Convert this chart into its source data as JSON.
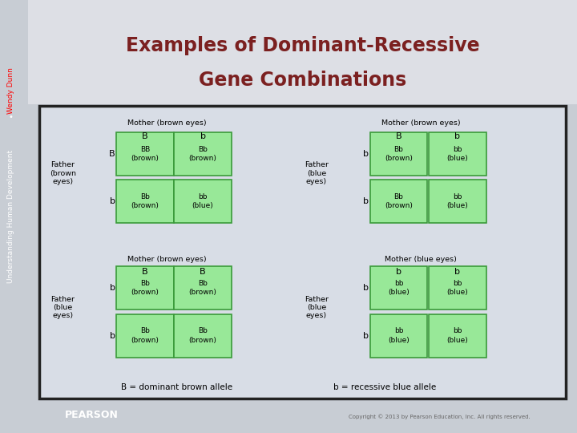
{
  "title_line1": "Examples of Dominant-Recessive",
  "title_line2": "Gene Combinations",
  "title_color": "#7B2020",
  "bg_color": "#C8CDD4",
  "inner_box_color": "#D8DDE6",
  "cell_fill_color": "#98E898",
  "cell_border_color": "#3A9A3A",
  "sidebar_bg": "#111111",
  "sidebar_text_main": "Understanding Human Development",
  "sidebar_text_bullet": "•",
  "sidebar_text_name": "Wendy Dunn",
  "pearson_bg": "#2255AA",
  "copyright_text": "Copyright © 2013 by Pearson Education, Inc. All rights reserved.",
  "legend_B": "B = dominant brown allele",
  "legend_b": "b = recessive blue allele",
  "punnett_squares": [
    {
      "mother_label": "Mother (brown eyes)",
      "father_label": "Father\n(brown\neyes)",
      "mother_alleles": [
        "B",
        "b"
      ],
      "father_alleles": [
        "B",
        "b"
      ],
      "cells": [
        [
          "BB\n(brown)",
          "Bb\n(brown)"
        ],
        [
          "Bb\n(brown)",
          "bb\n(blue)"
        ]
      ],
      "col": 0,
      "row": 0
    },
    {
      "mother_label": "Mother (brown eyes)",
      "father_label": "Father\n(blue\neyes)",
      "mother_alleles": [
        "B",
        "b"
      ],
      "father_alleles": [
        "b",
        "b"
      ],
      "cells": [
        [
          "Bb\n(brown)",
          "bb\n(blue)"
        ],
        [
          "Bb\n(brown)",
          "bb\n(blue)"
        ]
      ],
      "col": 1,
      "row": 0
    },
    {
      "mother_label": "Mother (brown eyes)",
      "father_label": "Father\n(blue\neyes)",
      "mother_alleles": [
        "B",
        "B"
      ],
      "father_alleles": [
        "b",
        "b"
      ],
      "cells": [
        [
          "Bb\n(brown)",
          "Bb\n(brown)"
        ],
        [
          "Bb\n(brown)",
          "Bb\n(brown)"
        ]
      ],
      "col": 0,
      "row": 1
    },
    {
      "mother_label": "Mother (blue eyes)",
      "father_label": "Father\n(blue\neyes)",
      "mother_alleles": [
        "b",
        "b"
      ],
      "father_alleles": [
        "b",
        "b"
      ],
      "cells": [
        [
          "bb\n(blue)",
          "bb\n(blue)"
        ],
        [
          "bb\n(blue)",
          "bb\n(blue)"
        ]
      ],
      "col": 1,
      "row": 1
    }
  ]
}
